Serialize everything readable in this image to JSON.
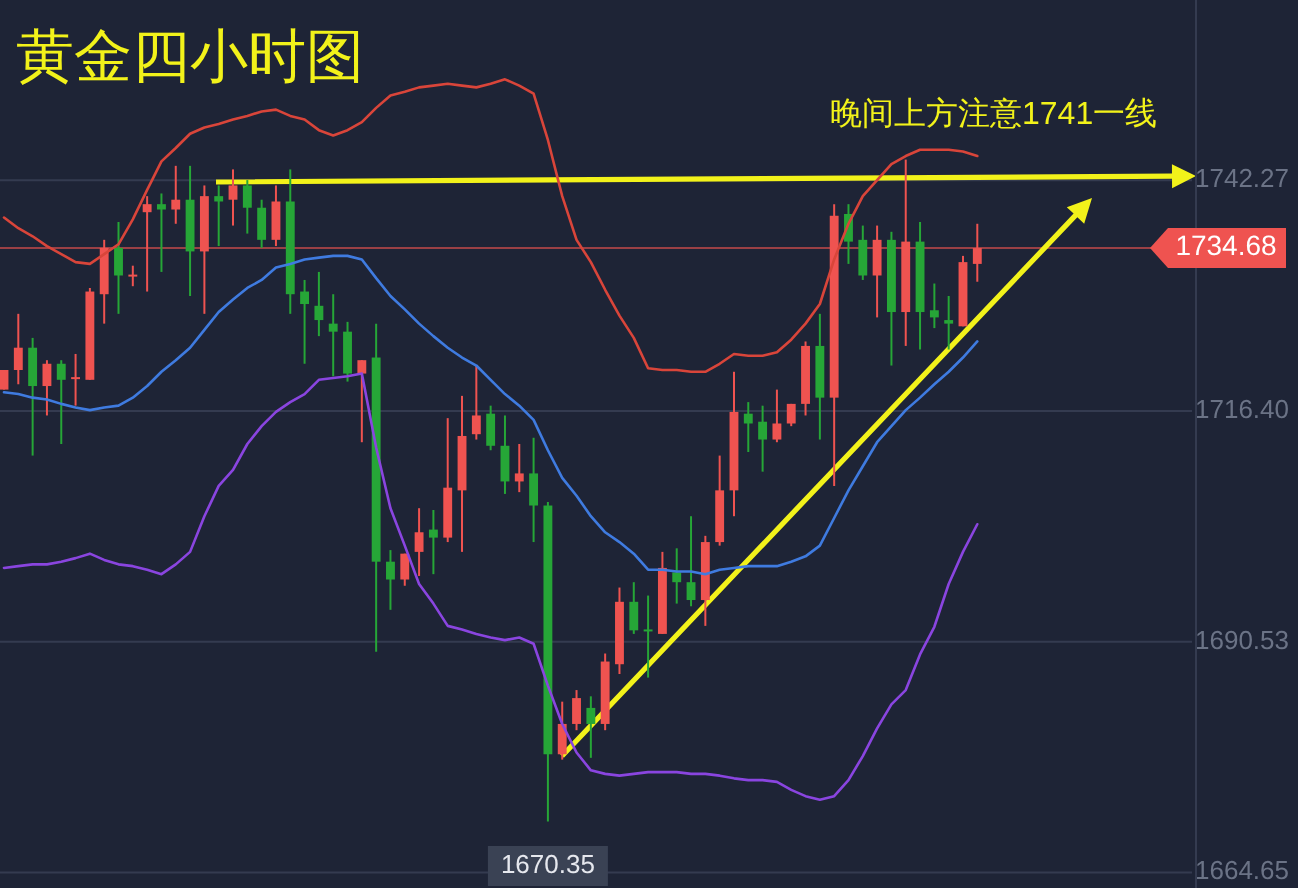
{
  "chart_data": {
    "type": "candlestick",
    "title": "黄金四小时图",
    "annotations": [
      "晚间上方注意1741一线",
      {
        "text": "1670.35",
        "y": 1670.35
      }
    ],
    "categories": [
      null,
      null,
      null,
      null,
      null,
      null,
      null,
      null,
      null,
      null,
      null,
      null,
      null,
      null,
      null,
      null,
      null,
      null,
      null,
      null,
      null,
      null,
      null,
      null,
      null,
      null,
      null,
      null,
      null,
      null,
      null,
      null,
      null,
      null,
      null,
      null,
      null,
      null,
      null,
      null,
      null,
      null,
      null,
      null,
      null,
      null,
      null,
      null,
      null,
      null,
      null,
      null,
      null,
      null,
      null,
      null,
      null,
      null,
      null,
      null,
      null,
      null,
      null,
      null,
      null,
      null,
      null,
      null,
      null,
      null,
      null,
      null,
      null,
      null,
      null,
      null,
      null,
      null,
      null,
      null,
      null,
      null,
      null,
      null
    ],
    "ohlc": [
      [
        1718.8,
        1721.0,
        1718.8,
        1721.0
      ],
      [
        1721.0,
        1727.3,
        1719.4,
        1723.5
      ],
      [
        1723.5,
        1724.6,
        1711.4,
        1719.2
      ],
      [
        1719.2,
        1722.1,
        1715.9,
        1721.7
      ],
      [
        1721.7,
        1722.1,
        1712.7,
        1719.9
      ],
      [
        1720.1,
        1722.8,
        1717.0,
        1720.2
      ],
      [
        1719.9,
        1730.2,
        1719.9,
        1729.8
      ],
      [
        1729.5,
        1735.6,
        1726.2,
        1734.7
      ],
      [
        1734.7,
        1737.6,
        1727.3,
        1731.6
      ],
      [
        1731.6,
        1732.7,
        1730.4,
        1731.7
      ],
      [
        1738.7,
        1740.5,
        1729.8,
        1739.6
      ],
      [
        1739.6,
        1740.8,
        1732.0,
        1739.0
      ],
      [
        1739.0,
        1743.9,
        1737.4,
        1740.1
      ],
      [
        1740.1,
        1743.9,
        1729.3,
        1734.3
      ],
      [
        1734.3,
        1741.7,
        1727.3,
        1740.5
      ],
      [
        1740.5,
        1741.7,
        1734.9,
        1739.9
      ],
      [
        1740.1,
        1743.5,
        1737.2,
        1741.7
      ],
      [
        1741.7,
        1742.3,
        1736.3,
        1739.2
      ],
      [
        1739.2,
        1740.1,
        1734.7,
        1735.6
      ],
      [
        1735.6,
        1741.7,
        1734.9,
        1739.9
      ],
      [
        1739.9,
        1743.5,
        1727.3,
        1729.5
      ],
      [
        1729.8,
        1731.1,
        1721.7,
        1728.4
      ],
      [
        1728.2,
        1732.0,
        1724.8,
        1726.6
      ],
      [
        1726.2,
        1729.5,
        1720.3,
        1725.3
      ],
      [
        1725.3,
        1726.4,
        1719.7,
        1720.6
      ],
      [
        1720.6,
        1722.1,
        1712.9,
        1722.1
      ],
      [
        1722.4,
        1726.2,
        1689.4,
        1699.5
      ],
      [
        1699.5,
        1700.8,
        1694.1,
        1697.5
      ],
      [
        1697.5,
        1700.4,
        1696.8,
        1700.4
      ],
      [
        1700.6,
        1705.5,
        1697.9,
        1702.8
      ],
      [
        1703.1,
        1705.3,
        1698.1,
        1702.2
      ],
      [
        1702.2,
        1715.6,
        1701.7,
        1707.8
      ],
      [
        1707.5,
        1718.1,
        1700.6,
        1713.6
      ],
      [
        1713.8,
        1721.5,
        1713.2,
        1715.9
      ],
      [
        1716.1,
        1717.0,
        1712.0,
        1712.5
      ],
      [
        1712.5,
        1715.9,
        1707.1,
        1708.5
      ],
      [
        1708.5,
        1712.7,
        1707.3,
        1709.4
      ],
      [
        1709.4,
        1713.4,
        1701.7,
        1705.8
      ],
      [
        1705.8,
        1706.2,
        1670.35,
        1677.9
      ],
      [
        1677.9,
        1683.8,
        1677.3,
        1681.3
      ],
      [
        1681.3,
        1685.1,
        1680.6,
        1684.2
      ],
      [
        1683.1,
        1684.4,
        1677.5,
        1681.3
      ],
      [
        1681.3,
        1689.2,
        1680.6,
        1688.3
      ],
      [
        1688.0,
        1696.6,
        1686.9,
        1695.0
      ],
      [
        1695.0,
        1697.2,
        1691.4,
        1691.8
      ],
      [
        1691.9,
        1695.7,
        1686.5,
        1691.8
      ],
      [
        1691.4,
        1700.6,
        1691.4,
        1698.8
      ],
      [
        1698.3,
        1701.0,
        1694.8,
        1697.2
      ],
      [
        1697.2,
        1704.6,
        1694.5,
        1695.2
      ],
      [
        1695.2,
        1702.4,
        1692.3,
        1701.7
      ],
      [
        1701.7,
        1711.4,
        1701.3,
        1707.5
      ],
      [
        1707.5,
        1720.8,
        1704.6,
        1716.3
      ],
      [
        1716.1,
        1717.4,
        1711.8,
        1715.0
      ],
      [
        1715.2,
        1717.0,
        1709.6,
        1713.2
      ],
      [
        1713.2,
        1718.8,
        1712.9,
        1715.0
      ],
      [
        1715.0,
        1717.2,
        1714.7,
        1717.2
      ],
      [
        1717.2,
        1724.2,
        1715.9,
        1723.7
      ],
      [
        1723.7,
        1727.3,
        1713.2,
        1717.9
      ],
      [
        1717.9,
        1739.6,
        1708.0,
        1738.3
      ],
      [
        1738.5,
        1739.6,
        1732.9,
        1735.4
      ],
      [
        1735.6,
        1737.2,
        1731.1,
        1731.6
      ],
      [
        1731.6,
        1737.2,
        1726.9,
        1735.6
      ],
      [
        1735.6,
        1736.5,
        1721.5,
        1727.5
      ],
      [
        1727.5,
        1744.6,
        1723.7,
        1735.4
      ],
      [
        1735.4,
        1737.6,
        1723.3,
        1727.5
      ],
      [
        1727.7,
        1730.7,
        1725.7,
        1726.9
      ],
      [
        1726.6,
        1729.3,
        1723.3,
        1726.2
      ],
      [
        1725.9,
        1733.8,
        1725.9,
        1733.1
      ],
      [
        1732.9,
        1737.4,
        1730.9,
        1734.68
      ],
      null,
      null,
      null,
      null,
      null,
      null,
      null,
      null,
      null,
      null,
      null,
      null,
      null,
      null,
      null
    ],
    "colors": [
      "#ef5350",
      "#ef5350",
      "#26a637",
      "#ef5350",
      "#26a637",
      "#ef5350",
      "#ef5350",
      "#ef5350",
      "#26a637",
      "#ef5350",
      "#ef5350",
      "#26a637",
      "#ef5350",
      "#26a637",
      "#ef5350",
      "#26a637",
      "#ef5350",
      "#26a637",
      "#26a637",
      "#ef5350",
      "#26a637",
      "#26a637",
      "#26a637",
      "#26a637",
      "#26a637",
      "#ef5350",
      "#26a637",
      "#26a637",
      "#ef5350",
      "#ef5350",
      "#26a637",
      "#ef5350",
      "#ef5350",
      "#ef5350",
      "#26a637",
      "#26a637",
      "#ef5350",
      "#26a637",
      "#26a637",
      "#ef5350",
      "#ef5350",
      "#26a637",
      "#ef5350",
      "#ef5350",
      "#26a637",
      "#26a637",
      "#ef5350",
      "#26a637",
      "#26a637",
      "#ef5350",
      "#ef5350",
      "#ef5350",
      "#26a637",
      "#26a637",
      "#ef5350",
      "#ef5350",
      "#ef5350",
      "#26a637",
      "#ef5350",
      "#26a637",
      "#26a637",
      "#ef5350",
      "#26a637",
      "#ef5350",
      "#26a637",
      "#26a637",
      "#26a637",
      "#ef5350",
      "#ef5350",
      null,
      null,
      null,
      null,
      null,
      null,
      null,
      null,
      null,
      null,
      null,
      null,
      null,
      null,
      null
    ],
    "series": [
      {
        "type": "line",
        "color": "#d9453a",
        "values": [
          1738.1,
          1736.9,
          1736.0,
          1734.9,
          1734.0,
          1733.1,
          1732.9,
          1734.0,
          1735.1,
          1737.9,
          1741.2,
          1744.4,
          1745.9,
          1747.5,
          1748.2,
          1748.6,
          1749.1,
          1749.5,
          1750.0,
          1750.2,
          1749.5,
          1749.1,
          1747.9,
          1747.3,
          1747.9,
          1748.8,
          1750.4,
          1751.8,
          1752.2,
          1752.7,
          1752.9,
          1753.1,
          1752.9,
          1752.7,
          1753.1,
          1753.6,
          1752.9,
          1752.0,
          1746.8,
          1740.5,
          1735.6,
          1733.1,
          1730.0,
          1727.1,
          1724.6,
          1721.2,
          1721.0,
          1721.0,
          1720.8,
          1720.8,
          1721.7,
          1722.8,
          1722.6,
          1722.6,
          1723.0,
          1724.4,
          1726.2,
          1728.4,
          1733.4,
          1737.4,
          1740.5,
          1742.3,
          1744.1,
          1745.0,
          1745.7,
          1745.7,
          1745.7,
          1745.5,
          1745.0,
          null,
          null,
          null,
          null,
          null,
          null,
          null,
          null,
          null,
          null,
          null,
          null,
          null,
          null,
          null
        ]
      },
      {
        "type": "line",
        "color": "#3f7be0",
        "values": [
          1718.5,
          1718.3,
          1717.9,
          1717.7,
          1717.2,
          1716.8,
          1716.5,
          1716.8,
          1717.0,
          1717.9,
          1719.2,
          1720.8,
          1722.1,
          1723.5,
          1725.5,
          1727.5,
          1728.9,
          1730.2,
          1731.1,
          1732.5,
          1732.9,
          1733.4,
          1733.6,
          1733.8,
          1733.8,
          1733.4,
          1731.3,
          1729.3,
          1727.8,
          1726.2,
          1724.8,
          1723.5,
          1722.4,
          1721.5,
          1719.9,
          1718.3,
          1717.0,
          1715.4,
          1712.0,
          1708.9,
          1706.9,
          1704.6,
          1702.8,
          1701.7,
          1700.4,
          1698.6,
          1698.6,
          1698.4,
          1698.4,
          1698.1,
          1698.6,
          1698.8,
          1699.0,
          1699.0,
          1699.0,
          1699.5,
          1700.1,
          1701.3,
          1704.4,
          1707.5,
          1710.2,
          1712.9,
          1714.7,
          1716.5,
          1717.9,
          1719.4,
          1720.8,
          1722.4,
          1724.2,
          null,
          null,
          null,
          null,
          null,
          null,
          null,
          null,
          null,
          null,
          null,
          null,
          null,
          null,
          null
        ]
      },
      {
        "type": "line",
        "color": "#8a45e0",
        "values": [
          1698.8,
          1699.0,
          1699.2,
          1699.2,
          1699.5,
          1699.9,
          1700.4,
          1699.7,
          1699.2,
          1699.0,
          1698.6,
          1698.1,
          1699.2,
          1700.6,
          1704.6,
          1708.0,
          1709.8,
          1712.7,
          1714.7,
          1716.3,
          1717.4,
          1718.3,
          1719.9,
          1720.1,
          1720.3,
          1720.6,
          1712.3,
          1705.5,
          1701.3,
          1697.0,
          1694.8,
          1692.3,
          1691.9,
          1691.4,
          1691.0,
          1690.7,
          1691.0,
          1690.3,
          1685.6,
          1681.3,
          1678.1,
          1676.1,
          1675.7,
          1675.5,
          1675.7,
          1675.9,
          1675.9,
          1675.9,
          1675.7,
          1675.7,
          1675.5,
          1675.2,
          1675.0,
          1675.0,
          1674.8,
          1673.9,
          1673.2,
          1672.8,
          1673.2,
          1675.0,
          1677.7,
          1680.8,
          1683.5,
          1685.1,
          1689.1,
          1692.2,
          1697.0,
          1700.6,
          1703.7,
          null,
          null,
          null,
          null,
          null,
          null,
          null,
          null,
          null,
          null,
          null,
          null,
          null,
          null,
          null
        ]
      }
    ],
    "ref_lines": [
      {
        "axis": "y",
        "value": 1734.68,
        "label": "1734.68",
        "color": "#ef5350"
      }
    ],
    "ylim": [
      1662.9,
      1762.5
    ],
    "yticks": [
      1742.27,
      {
        "value": 1716.4,
        "label": "1716.40"
      },
      1690.53,
      1664.65
    ],
    "grid": "y",
    "tick_labels": "y"
  }
}
